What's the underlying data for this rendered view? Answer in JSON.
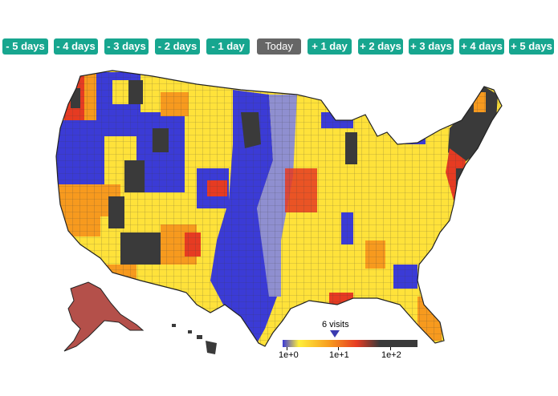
{
  "day_buttons": [
    {
      "label": "- 5 days"
    },
    {
      "label": "- 4 days"
    },
    {
      "label": "- 3 days"
    },
    {
      "label": "- 2 days"
    },
    {
      "label": "- 1 day"
    },
    {
      "label": "Today",
      "selected": true
    },
    {
      "label": "+ 1 day"
    },
    {
      "label": "+ 2 days"
    },
    {
      "label": "+ 3 days"
    },
    {
      "label": "+ 4 days"
    },
    {
      "label": "+ 5 days"
    }
  ],
  "colors": {
    "button_bg": "#17a68f",
    "button_selected_bg": "#666666",
    "scale": [
      "#3b3bd6",
      "#ffef3a",
      "#f79a1e",
      "#e63b22",
      "#3a3a3a"
    ]
  },
  "legend": {
    "marker_label": "6 visits",
    "ticks": [
      "1e+0",
      "1e+1",
      "1e+2"
    ]
  }
}
